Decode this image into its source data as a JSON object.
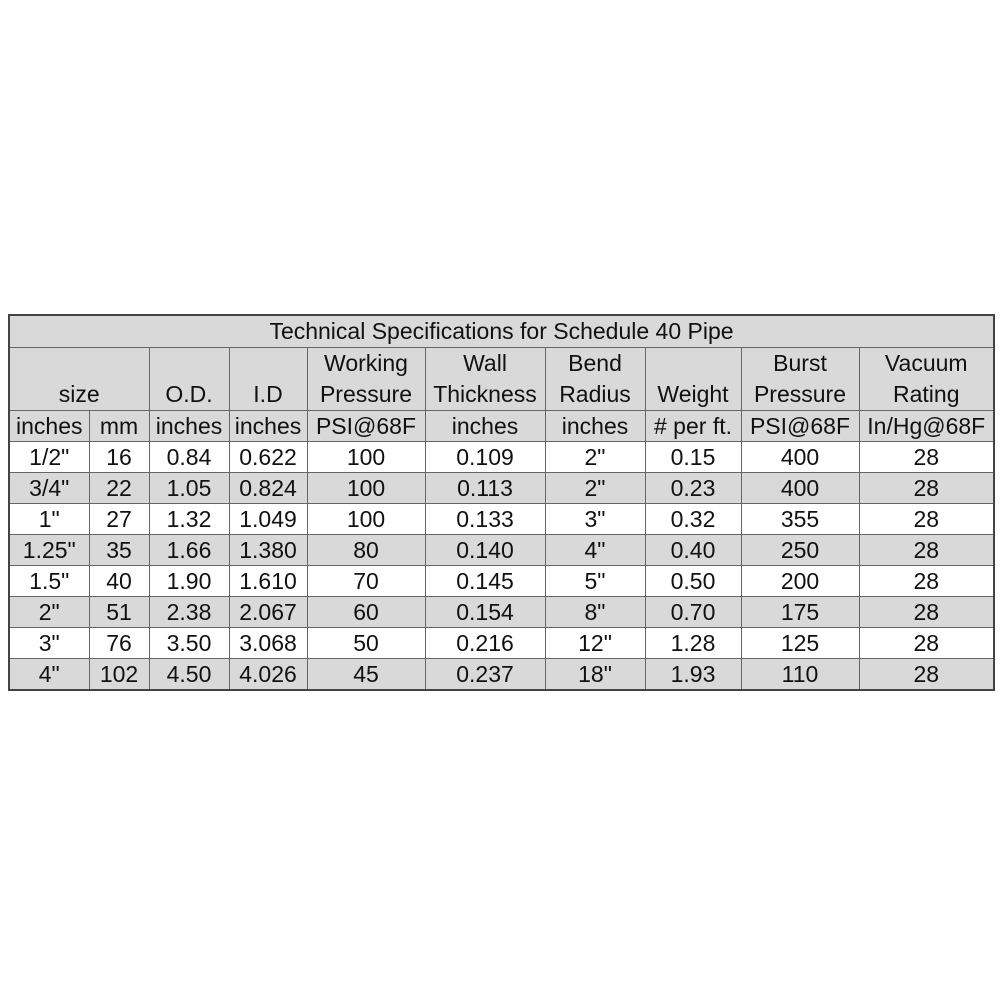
{
  "title": "Technical Specifications for Schedule 40 Pipe",
  "headers": {
    "size": "size",
    "od": "O.D.",
    "id": "I.D",
    "working_pressure": [
      "Working",
      "Pressure"
    ],
    "wall_thickness": [
      "Wall",
      "Thickness"
    ],
    "bend_radius": [
      "Bend",
      "Radius"
    ],
    "weight": "Weight",
    "burst_pressure": [
      "Burst",
      "Pressure"
    ],
    "vacuum_rating": [
      "Vacuum",
      "Rating"
    ]
  },
  "units": [
    "inches",
    "mm",
    "inches",
    "inches",
    "PSI@68F",
    "inches",
    "inches",
    "# per ft.",
    "PSI@68F",
    "In/Hg@68F"
  ],
  "rows": [
    [
      "1/2\"",
      "16",
      "0.84",
      "0.622",
      "100",
      "0.109",
      "2\"",
      "0.15",
      "400",
      "28"
    ],
    [
      "3/4\"",
      "22",
      "1.05",
      "0.824",
      "100",
      "0.113",
      "2\"",
      "0.23",
      "400",
      "28"
    ],
    [
      "1\"",
      "27",
      "1.32",
      "1.049",
      "100",
      "0.133",
      "3\"",
      "0.32",
      "355",
      "28"
    ],
    [
      "1.25\"",
      "35",
      "1.66",
      "1.380",
      "80",
      "0.140",
      "4\"",
      "0.40",
      "250",
      "28"
    ],
    [
      "1.5\"",
      "40",
      "1.90",
      "1.610",
      "70",
      "0.145",
      "5\"",
      "0.50",
      "200",
      "28"
    ],
    [
      "2\"",
      "51",
      "2.38",
      "2.067",
      "60",
      "0.154",
      "8\"",
      "0.70",
      "175",
      "28"
    ],
    [
      "3\"",
      "76",
      "3.50",
      "3.068",
      "50",
      "0.216",
      "12\"",
      "1.28",
      "125",
      "28"
    ],
    [
      "4\"",
      "102",
      "4.50",
      "4.026",
      "45",
      "0.237",
      "18\"",
      "1.93",
      "110",
      "28"
    ]
  ],
  "colors": {
    "shaded": "#d9d9d9",
    "border": "#444444"
  }
}
